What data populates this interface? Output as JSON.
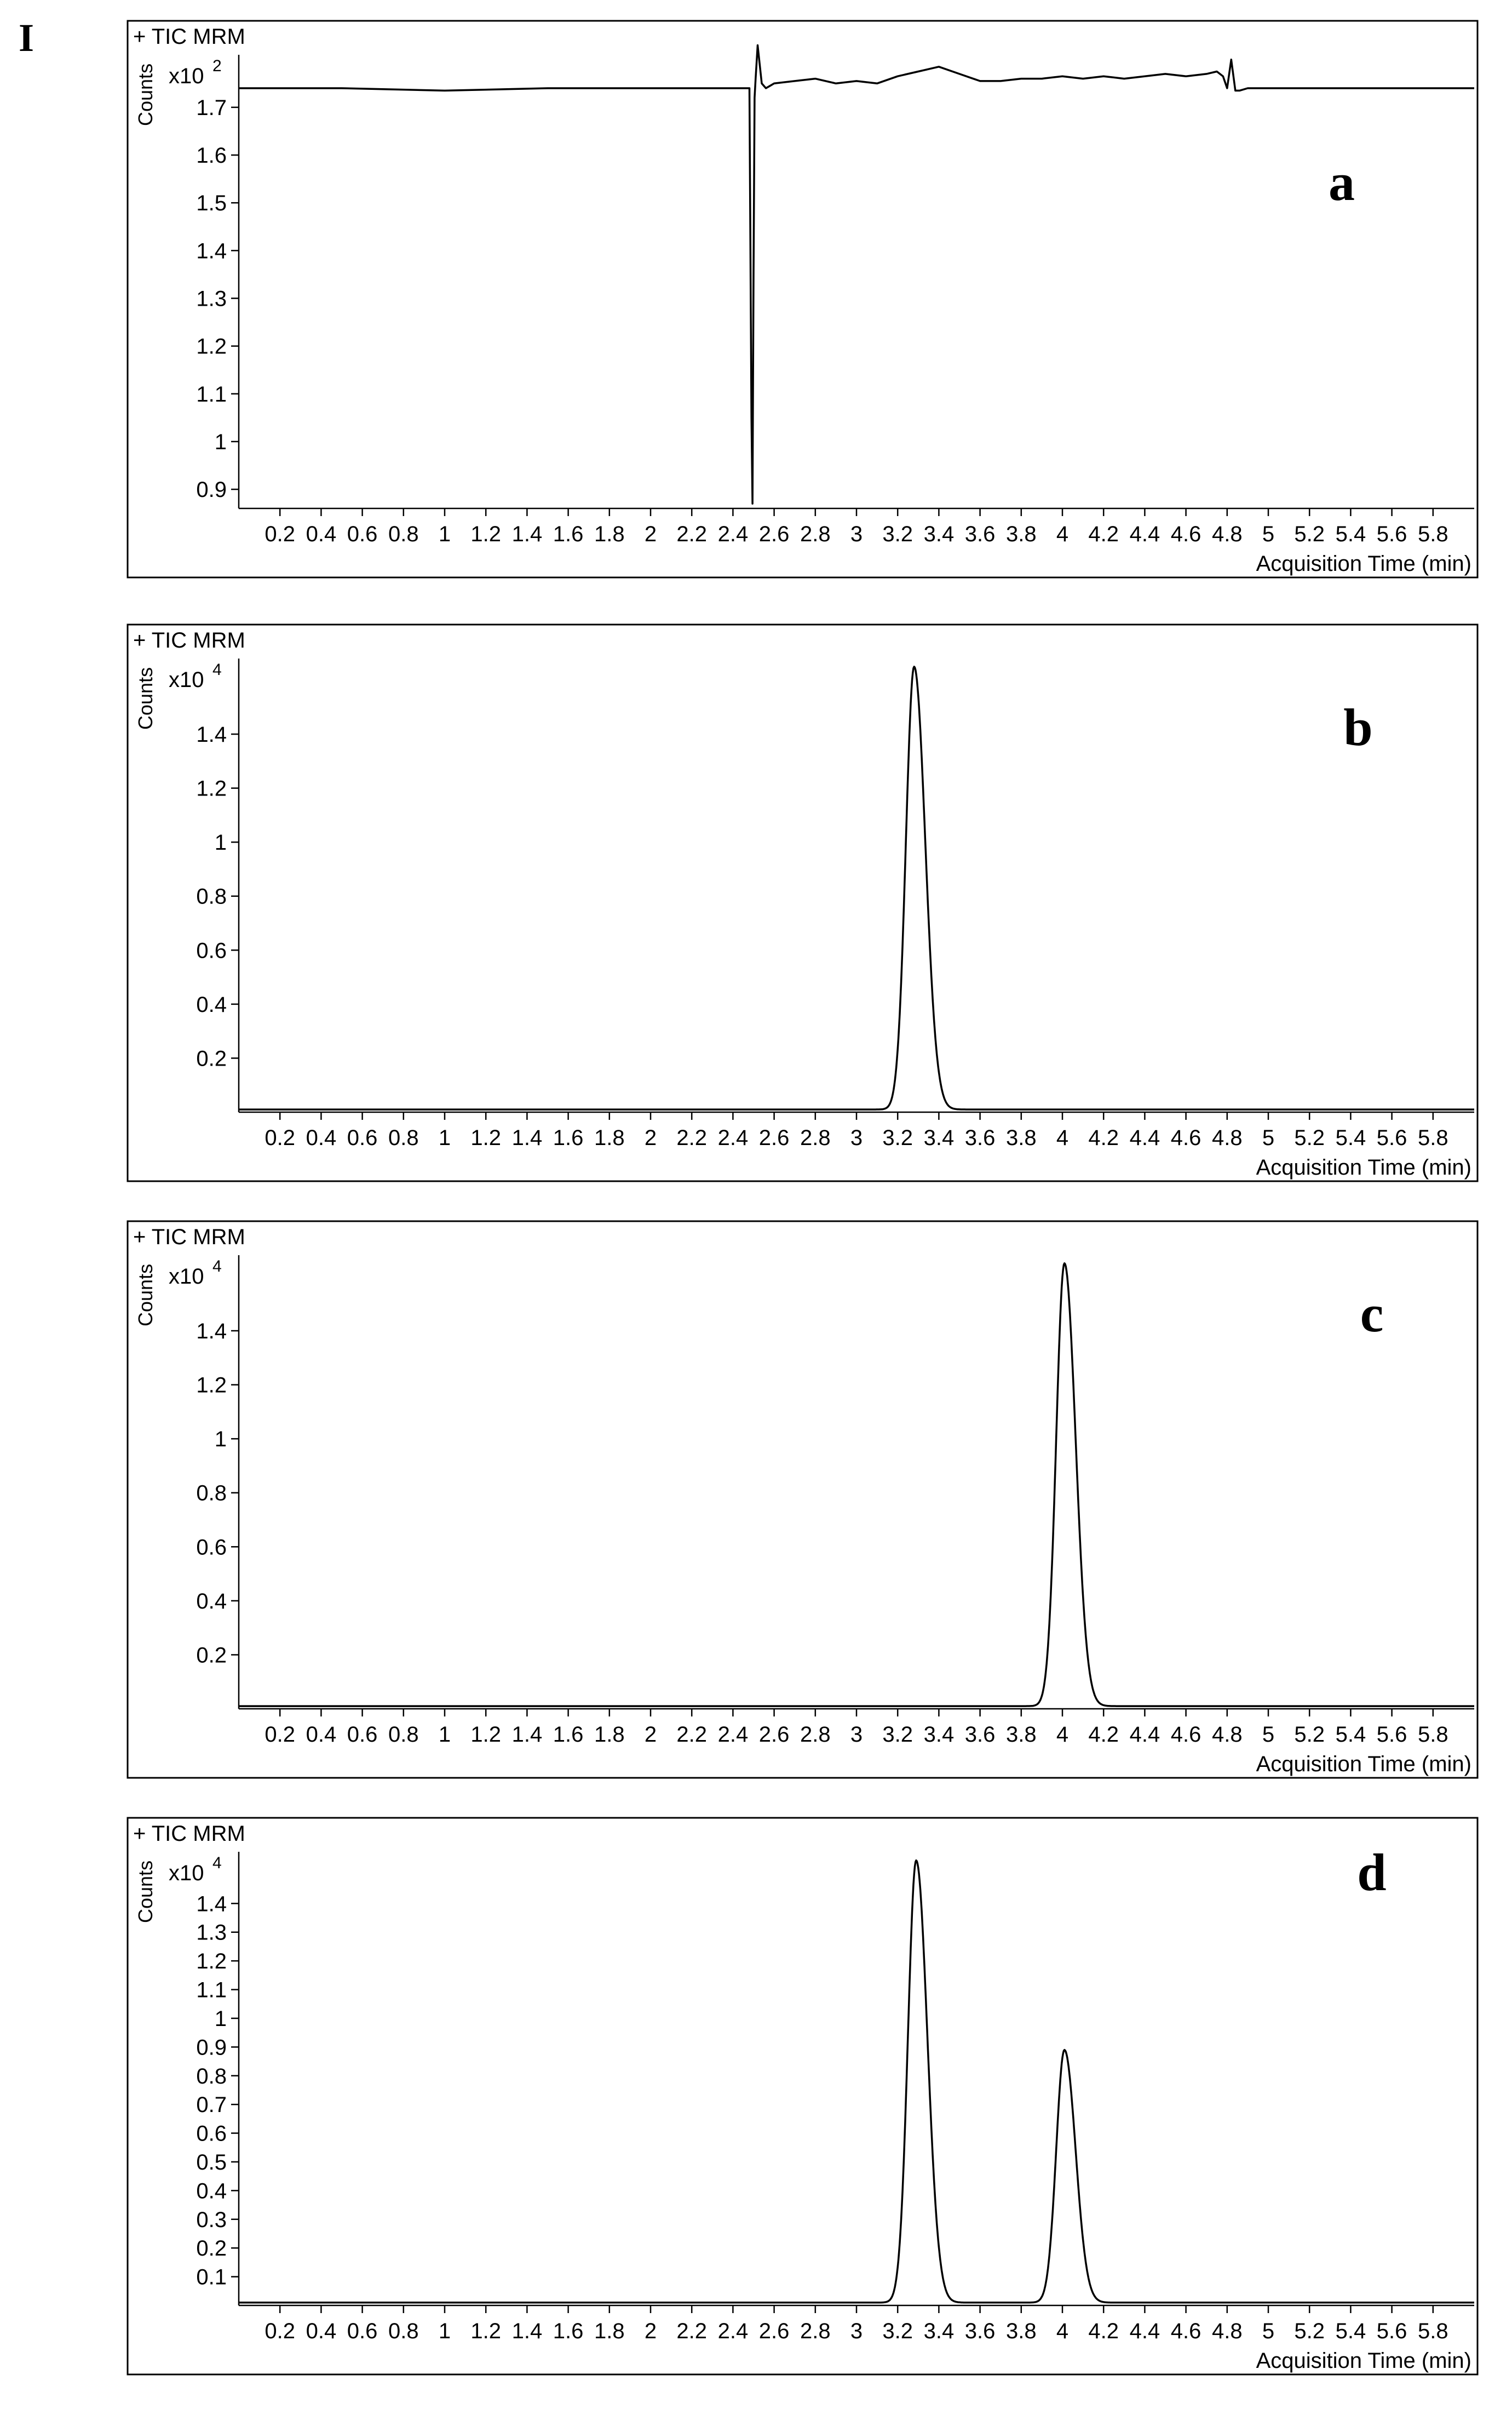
{
  "figure_label": "I",
  "chart_data": [
    {
      "type": "line",
      "panel_letter": "a",
      "title": "+ TIC MRM",
      "ylabel": "Counts",
      "y_multiplier": "x10",
      "y_multiplier_exp": "2",
      "xlabel": "Acquisition Time (min)",
      "xlim": [
        0,
        6.0
      ],
      "ylim": [
        0.86,
        1.81
      ],
      "x_ticks": [
        0.2,
        0.4,
        0.6,
        0.8,
        1,
        1.2,
        1.4,
        1.6,
        1.8,
        2,
        2.2,
        2.4,
        2.6,
        2.8,
        3,
        3.2,
        3.4,
        3.6,
        3.8,
        4,
        4.2,
        4.4,
        4.6,
        4.8,
        5,
        5.2,
        5.4,
        5.6,
        5.8
      ],
      "x_tick_labels": [
        "0.2",
        "0.4",
        "0.6",
        "0.8",
        "1",
        "1.2",
        "1.4",
        "1.6",
        "1.8",
        "2",
        "2.2",
        "2.4",
        "2.6",
        "2.8",
        "3",
        "3.2",
        "3.4",
        "3.6",
        "3.8",
        "4",
        "4.2",
        "4.4",
        "4.6",
        "4.8",
        "5",
        "5.2",
        "5.4",
        "5.6",
        "5.8"
      ],
      "y_ticks": [
        0.9,
        1,
        1.1,
        1.2,
        1.3,
        1.4,
        1.5,
        1.6,
        1.7
      ],
      "y_tick_labels": [
        "0.9",
        "1",
        "1.1",
        "1.2",
        "1.3",
        "1.4",
        "1.5",
        "1.6",
        "1.7"
      ],
      "series": [
        {
          "x": [
            0,
            0.5,
            1.0,
            1.5,
            2.0,
            2.3,
            2.48,
            2.49,
            2.495,
            2.5,
            2.505,
            2.51,
            2.52,
            2.54,
            2.56,
            2.58,
            2.6,
            2.7,
            2.8,
            2.9,
            3.0,
            3.1,
            3.2,
            3.3,
            3.4,
            3.5,
            3.6,
            3.7,
            3.8,
            3.9,
            4.0,
            4.1,
            4.2,
            4.3,
            4.4,
            4.5,
            4.6,
            4.7,
            4.75,
            4.78,
            4.8,
            4.82,
            4.84,
            4.86,
            4.9,
            5.0,
            5.5,
            6.0
          ],
          "y": [
            1.74,
            1.74,
            1.735,
            1.74,
            1.74,
            1.74,
            1.74,
            1.05,
            0.87,
            1.35,
            1.72,
            1.76,
            1.83,
            1.75,
            1.74,
            1.745,
            1.75,
            1.755,
            1.76,
            1.75,
            1.755,
            1.75,
            1.765,
            1.775,
            1.785,
            1.77,
            1.755,
            1.755,
            1.76,
            1.76,
            1.765,
            1.76,
            1.765,
            1.76,
            1.765,
            1.77,
            1.765,
            1.77,
            1.775,
            1.765,
            1.74,
            1.8,
            1.735,
            1.735,
            1.74,
            1.74,
            1.74,
            1.74
          ]
        }
      ]
    },
    {
      "type": "line",
      "panel_letter": "b",
      "title": "+ TIC MRM",
      "ylabel": "Counts",
      "y_multiplier": "x10",
      "y_multiplier_exp": "4",
      "xlabel": "Acquisition Time (min)",
      "xlim": [
        0,
        6.0
      ],
      "ylim": [
        0,
        1.68
      ],
      "x_ticks": [
        0.2,
        0.4,
        0.6,
        0.8,
        1,
        1.2,
        1.4,
        1.6,
        1.8,
        2,
        2.2,
        2.4,
        2.6,
        2.8,
        3,
        3.2,
        3.4,
        3.6,
        3.8,
        4,
        4.2,
        4.4,
        4.6,
        4.8,
        5,
        5.2,
        5.4,
        5.6,
        5.8
      ],
      "x_tick_labels": [
        "0.2",
        "0.4",
        "0.6",
        "0.8",
        "1",
        "1.2",
        "1.4",
        "1.6",
        "1.8",
        "2",
        "2.2",
        "2.4",
        "2.6",
        "2.8",
        "3",
        "3.2",
        "3.4",
        "3.6",
        "3.8",
        "4",
        "4.2",
        "4.4",
        "4.6",
        "4.8",
        "5",
        "5.2",
        "5.4",
        "5.6",
        "5.8"
      ],
      "y_ticks": [
        0.2,
        0.4,
        0.6,
        0.8,
        1,
        1.2,
        1.4
      ],
      "y_tick_labels": [
        "0.2",
        "0.4",
        "0.6",
        "0.8",
        "1",
        "1.2",
        "1.4"
      ],
      "series": [
        {
          "peaks": [
            {
              "center": 3.28,
              "height": 1.64,
              "sigma": 0.04
            }
          ],
          "baseline": 0.01
        }
      ]
    },
    {
      "type": "line",
      "panel_letter": "c",
      "title": "+ TIC MRM",
      "ylabel": "Counts",
      "y_multiplier": "x10",
      "y_multiplier_exp": "4",
      "xlabel": "Acquisition Time (min)",
      "xlim": [
        0,
        6.0
      ],
      "ylim": [
        0,
        1.68
      ],
      "x_ticks": [
        0.2,
        0.4,
        0.6,
        0.8,
        1,
        1.2,
        1.4,
        1.6,
        1.8,
        2,
        2.2,
        2.4,
        2.6,
        2.8,
        3,
        3.2,
        3.4,
        3.6,
        3.8,
        4,
        4.2,
        4.4,
        4.6,
        4.8,
        5,
        5.2,
        5.4,
        5.6,
        5.8
      ],
      "x_tick_labels": [
        "0.2",
        "0.4",
        "0.6",
        "0.8",
        "1",
        "1.2",
        "1.4",
        "1.6",
        "1.8",
        "2",
        "2.2",
        "2.4",
        "2.6",
        "2.8",
        "3",
        "3.2",
        "3.4",
        "3.6",
        "3.8",
        "4",
        "4.2",
        "4.4",
        "4.6",
        "4.8",
        "5",
        "5.2",
        "5.4",
        "5.6",
        "5.8"
      ],
      "y_ticks": [
        0.2,
        0.4,
        0.6,
        0.8,
        1,
        1.2,
        1.4
      ],
      "y_tick_labels": [
        "0.2",
        "0.4",
        "0.6",
        "0.8",
        "1",
        "1.2",
        "1.4"
      ],
      "series": [
        {
          "peaks": [
            {
              "center": 4.01,
              "height": 1.64,
              "sigma": 0.04
            }
          ],
          "baseline": 0.01
        }
      ]
    },
    {
      "type": "line",
      "panel_letter": "d",
      "title": "+ TIC MRM",
      "ylabel": "Counts",
      "y_multiplier": "x10",
      "y_multiplier_exp": "4",
      "xlabel": "Acquisition Time (min)",
      "xlim": [
        0,
        6.0
      ],
      "ylim": [
        0,
        1.58
      ],
      "x_ticks": [
        0.2,
        0.4,
        0.6,
        0.8,
        1,
        1.2,
        1.4,
        1.6,
        1.8,
        2,
        2.2,
        2.4,
        2.6,
        2.8,
        3,
        3.2,
        3.4,
        3.6,
        3.8,
        4,
        4.2,
        4.4,
        4.6,
        4.8,
        5,
        5.2,
        5.4,
        5.6,
        5.8
      ],
      "x_tick_labels": [
        "0.2",
        "0.4",
        "0.6",
        "0.8",
        "1",
        "1.2",
        "1.4",
        "1.6",
        "1.8",
        "2",
        "2.2",
        "2.4",
        "2.6",
        "2.8",
        "3",
        "3.2",
        "3.4",
        "3.6",
        "3.8",
        "4",
        "4.2",
        "4.4",
        "4.6",
        "4.8",
        "5",
        "5.2",
        "5.4",
        "5.6",
        "5.8"
      ],
      "y_ticks": [
        0.1,
        0.2,
        0.3,
        0.4,
        0.5,
        0.6,
        0.7,
        0.8,
        0.9,
        1,
        1.1,
        1.2,
        1.3,
        1.4
      ],
      "y_tick_labels": [
        "0.1",
        "0.2",
        "0.3",
        "0.4",
        "0.5",
        "0.6",
        "0.7",
        "0.8",
        "0.9",
        "1",
        "1.1",
        "1.2",
        "1.3",
        "1.4"
      ],
      "series": [
        {
          "peaks": [
            {
              "center": 3.29,
              "height": 1.54,
              "sigma": 0.04
            },
            {
              "center": 4.01,
              "height": 0.88,
              "sigma": 0.04
            }
          ],
          "baseline": 0.01
        }
      ]
    }
  ]
}
